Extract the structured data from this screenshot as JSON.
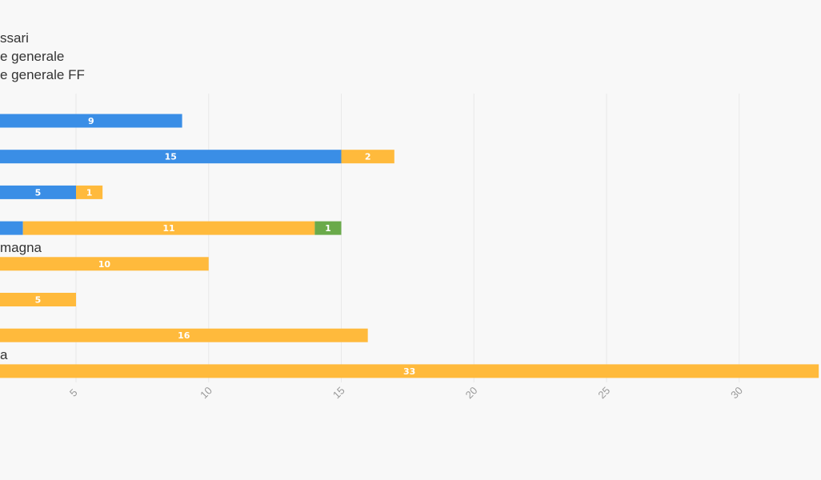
{
  "chart_data": {
    "type": "bar",
    "orientation": "horizontal",
    "stacked": true,
    "title": "",
    "xlabel": "",
    "ylabel": "",
    "xlim": [
      -3.5,
      33.5
    ],
    "x_ticks": [
      "5",
      "10",
      "15",
      "20",
      "25",
      "30"
    ],
    "grid": true,
    "legend_position": "top-left",
    "legend": [
      "ssari",
      "e generale",
      "e generale FF"
    ],
    "categories": [
      "",
      "",
      "",
      "",
      "magna",
      "",
      "",
      "a"
    ],
    "series": [
      {
        "name": "ssari",
        "color": "#3a8ee6",
        "values": [
          9,
          15,
          5,
          3,
          0,
          0,
          0,
          0
        ],
        "labels": [
          "9",
          "15",
          "5",
          "",
          "",
          "",
          "",
          ""
        ]
      },
      {
        "name": "e generale",
        "color": "#ffba3c",
        "values": [
          0,
          2,
          1,
          11,
          10,
          5,
          16,
          33
        ],
        "labels": [
          "",
          "2",
          "1",
          "11",
          "10",
          "5",
          "16",
          "33"
        ]
      },
      {
        "name": "e generale FF",
        "color": "#6aaa4a",
        "values": [
          0,
          0,
          0,
          1,
          0,
          0,
          0,
          0
        ],
        "labels": [
          "",
          "",
          "",
          "1",
          "",
          "",
          "",
          ""
        ]
      }
    ]
  }
}
